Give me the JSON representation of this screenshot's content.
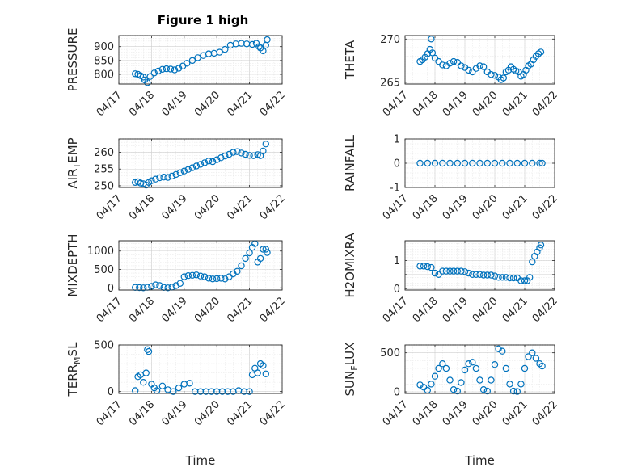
{
  "figure_title": "Figure 1 high",
  "colors": {
    "series": "#0072BD",
    "axes": "#262626"
  },
  "chart_data": [
    {
      "type": "scatter",
      "panel": "PRESSURE",
      "title": "Figure 1 high",
      "xlabel": "",
      "ylabel": "PRESSURE",
      "xlim": [
        "04/17",
        "04/22"
      ],
      "xticks": [
        "04/17",
        "04/18",
        "04/19",
        "04/20",
        "04/21",
        "04/22"
      ],
      "ylim": [
        765,
        940
      ],
      "yticks": [
        800,
        850,
        900
      ],
      "yticklabels": [
        "800",
        "850",
        "900"
      ],
      "grid": true,
      "marker": "circle",
      "x": [
        "04/17 12:00",
        "04/17 14:00",
        "04/17 16:00",
        "04/17 18:00",
        "04/17 19:00",
        "04/17 21:00",
        "04/17 23:00",
        "04/18 02:00",
        "04/18 05:00",
        "04/18 08:00",
        "04/18 11:00",
        "04/18 14:00",
        "04/18 17:00",
        "04/18 20:00",
        "04/18 23:00",
        "04/19 02:00",
        "04/19 06:00",
        "04/19 10:00",
        "04/19 14:00",
        "04/19 18:00",
        "04/19 22:00",
        "04/20 02:00",
        "04/20 06:00",
        "04/20 10:00",
        "04/20 14:00",
        "04/20 18:00",
        "04/20 22:00",
        "04/21 02:00",
        "04/21 05:00",
        "04/21 07:00",
        "04/21 08:00",
        "04/21 10:00",
        "04/21 12:00",
        "04/21 13:00"
      ],
      "y": [
        802,
        800,
        795,
        790,
        780,
        770,
        792,
        805,
        812,
        818,
        820,
        819,
        816,
        822,
        830,
        840,
        850,
        860,
        868,
        874,
        876,
        880,
        890,
        905,
        910,
        912,
        910,
        908,
        912,
        900,
        895,
        885,
        905,
        925
      ]
    },
    {
      "type": "scatter",
      "panel": "THETA",
      "xlabel": "",
      "ylabel": "THETA",
      "xlim": [
        "04/17",
        "04/22"
      ],
      "xticks": [
        "04/17",
        "04/18",
        "04/19",
        "04/20",
        "04/21",
        "04/22"
      ],
      "ylim": [
        264.8,
        270.4
      ],
      "yticks": [
        265,
        270
      ],
      "yticklabels": [
        "265",
        "270"
      ],
      "grid": true,
      "marker": "circle",
      "x": [
        "04/17 12:00",
        "04/17 14:00",
        "04/17 16:00",
        "04/17 18:00",
        "04/17 20:00",
        "04/17 21:00",
        "04/17 22:00",
        "04/18 00:00",
        "04/18 03:00",
        "04/18 06:00",
        "04/18 09:00",
        "04/18 12:00",
        "04/18 15:00",
        "04/18 18:00",
        "04/18 21:00",
        "04/19 00:00",
        "04/19 03:00",
        "04/19 06:00",
        "04/19 09:00",
        "04/19 12:00",
        "04/19 15:00",
        "04/19 18:00",
        "04/19 21:00",
        "04/20 00:00",
        "04/20 03:00",
        "04/20 05:00",
        "04/20 07:00",
        "04/20 09:00",
        "04/20 11:00",
        "04/20 13:00",
        "04/20 15:00",
        "04/20 17:00",
        "04/20 19:00",
        "04/20 21:00",
        "04/20 23:00",
        "04/21 01:00",
        "04/21 03:00",
        "04/21 05:00",
        "04/21 07:00",
        "04/21 09:00",
        "04/21 11:00",
        "04/21 13:00"
      ],
      "y": [
        267.4,
        267.6,
        267.9,
        268.3,
        268.8,
        270.0,
        268.4,
        267.8,
        267.4,
        267.0,
        266.9,
        267.2,
        267.4,
        267.3,
        266.9,
        266.7,
        266.4,
        266.2,
        266.6,
        266.9,
        266.8,
        266.2,
        265.9,
        265.8,
        265.6,
        265.3,
        265.5,
        266.2,
        266.4,
        266.8,
        266.5,
        266.3,
        266.2,
        265.7,
        265.9,
        266.4,
        266.9,
        267.1,
        267.6,
        268.0,
        268.3,
        268.5
      ]
    },
    {
      "type": "scatter",
      "panel": "AIR_TEMP",
      "xlabel": "",
      "ylabel": "AIR_TEMP",
      "ylabel_main": "AIR",
      "ylabel_sub": "T",
      "ylabel_tail": "EMP",
      "xlim": [
        "04/17",
        "04/22"
      ],
      "xticks": [
        "04/17",
        "04/18",
        "04/19",
        "04/20",
        "04/21",
        "04/22"
      ],
      "ylim": [
        249.5,
        264.0
      ],
      "yticks": [
        250,
        255,
        260
      ],
      "yticklabels": [
        "250",
        "255",
        "260"
      ],
      "grid": true,
      "marker": "circle",
      "x": [
        "04/17 12:00",
        "04/17 14:00",
        "04/17 16:00",
        "04/17 18:00",
        "04/17 20:00",
        "04/17 22:00",
        "04/18 00:00",
        "04/18 03:00",
        "04/18 06:00",
        "04/18 09:00",
        "04/18 12:00",
        "04/18 15:00",
        "04/18 18:00",
        "04/18 21:00",
        "04/19 00:00",
        "04/19 03:00",
        "04/19 06:00",
        "04/19 09:00",
        "04/19 12:00",
        "04/19 15:00",
        "04/19 18:00",
        "04/19 21:00",
        "04/20 00:00",
        "04/20 03:00",
        "04/20 06:00",
        "04/20 09:00",
        "04/20 12:00",
        "04/20 15:00",
        "04/20 18:00",
        "04/20 21:00",
        "04/21 00:00",
        "04/21 03:00",
        "04/21 06:00",
        "04/21 08:00",
        "04/21 10:00",
        "04/21 12:00"
      ],
      "y": [
        251.0,
        251.2,
        250.8,
        250.6,
        250.2,
        251.0,
        251.5,
        252.0,
        252.4,
        252.6,
        252.5,
        252.9,
        253.4,
        253.9,
        254.4,
        254.9,
        255.4,
        255.9,
        256.4,
        256.9,
        257.4,
        257.2,
        257.8,
        258.4,
        258.9,
        259.4,
        260.0,
        260.2,
        259.8,
        259.4,
        259.1,
        259.0,
        259.3,
        259.0,
        260.4,
        262.5
      ]
    },
    {
      "type": "scatter",
      "panel": "RAINFALL",
      "xlabel": "",
      "ylabel": "RAINFALL",
      "xlim": [
        "04/17",
        "04/22"
      ],
      "xticks": [
        "04/17",
        "04/18",
        "04/19",
        "04/20",
        "04/21",
        "04/22"
      ],
      "ylim": [
        -1,
        1
      ],
      "yticks": [
        -1,
        0,
        1
      ],
      "yticklabels": [
        "-1",
        "0",
        "1"
      ],
      "grid": true,
      "marker": "circle",
      "x": [
        "04/17 12:00",
        "04/17 18:00",
        "04/18 00:00",
        "04/18 06:00",
        "04/18 12:00",
        "04/18 18:00",
        "04/19 00:00",
        "04/19 06:00",
        "04/19 12:00",
        "04/19 18:00",
        "04/20 00:00",
        "04/20 06:00",
        "04/20 12:00",
        "04/20 18:00",
        "04/21 00:00",
        "04/21 06:00",
        "04/21 12:00",
        "04/21 14:00"
      ],
      "y": [
        0,
        0,
        0,
        0,
        0,
        0,
        0,
        0,
        0,
        0,
        0,
        0,
        0,
        0,
        0,
        0,
        0,
        0
      ]
    },
    {
      "type": "scatter",
      "panel": "MIXDEPTH",
      "xlabel": "",
      "ylabel": "MIXDEPTH",
      "xlim": [
        "04/17",
        "04/22"
      ],
      "xticks": [
        "04/17",
        "04/18",
        "04/19",
        "04/20",
        "04/21",
        "04/22"
      ],
      "ylim": [
        -60,
        1280
      ],
      "yticks": [
        0,
        500,
        1000
      ],
      "yticklabels": [
        "0",
        "500",
        "1000"
      ],
      "grid": true,
      "marker": "circle",
      "x": [
        "04/17 12:00",
        "04/17 15:00",
        "04/17 18:00",
        "04/17 21:00",
        "04/18 00:00",
        "04/18 03:00",
        "04/18 06:00",
        "04/18 09:00",
        "04/18 12:00",
        "04/18 15:00",
        "04/18 18:00",
        "04/18 21:00",
        "04/19 00:00",
        "04/19 03:00",
        "04/19 06:00",
        "04/19 09:00",
        "04/19 12:00",
        "04/19 15:00",
        "04/19 18:00",
        "04/19 21:00",
        "04/20 00:00",
        "04/20 03:00",
        "04/20 06:00",
        "04/20 09:00",
        "04/20 12:00",
        "04/20 15:00",
        "04/20 18:00",
        "04/20 21:00",
        "04/21 00:00",
        "04/21 02:00",
        "04/21 04:00",
        "04/21 06:00",
        "04/21 08:00",
        "04/21 10:00",
        "04/21 12:00",
        "04/21 13:00"
      ],
      "y": [
        10,
        5,
        0,
        15,
        40,
        80,
        60,
        10,
        0,
        20,
        60,
        120,
        300,
        330,
        340,
        350,
        320,
        300,
        260,
        240,
        250,
        260,
        240,
        300,
        380,
        450,
        600,
        800,
        950,
        1100,
        1200,
        700,
        800,
        1050,
        1050,
        960
      ]
    },
    {
      "type": "scatter",
      "panel": "H2OMIXRA",
      "xlabel": "",
      "ylabel": "H2OMIXRA",
      "xlim": [
        "04/17",
        "04/22"
      ],
      "xticks": [
        "04/17",
        "04/18",
        "04/19",
        "04/20",
        "04/21",
        "04/22"
      ],
      "ylim": [
        -0.05,
        1.7
      ],
      "yticks": [
        0,
        0.5,
        1
      ],
      "yticklabels": [
        "0",
        "",
        "1"
      ],
      "grid": true,
      "marker": "circle",
      "x": [
        "04/17 12:00",
        "04/17 15:00",
        "04/17 18:00",
        "04/17 21:00",
        "04/18 00:00",
        "04/18 03:00",
        "04/18 06:00",
        "04/18 09:00",
        "04/18 12:00",
        "04/18 15:00",
        "04/18 18:00",
        "04/18 21:00",
        "04/19 00:00",
        "04/19 03:00",
        "04/19 06:00",
        "04/19 09:00",
        "04/19 12:00",
        "04/19 15:00",
        "04/19 18:00",
        "04/19 21:00",
        "04/20 00:00",
        "04/20 03:00",
        "04/20 06:00",
        "04/20 09:00",
        "04/20 12:00",
        "04/20 15:00",
        "04/20 18:00",
        "04/20 21:00",
        "04/21 00:00",
        "04/21 02:00",
        "04/21 04:00",
        "04/21 06:00",
        "04/21 08:00",
        "04/21 10:00",
        "04/21 12:00",
        "04/21 13:00"
      ],
      "y": [
        0.8,
        0.8,
        0.78,
        0.75,
        0.55,
        0.5,
        0.62,
        0.62,
        0.62,
        0.62,
        0.62,
        0.62,
        0.6,
        0.55,
        0.5,
        0.5,
        0.5,
        0.48,
        0.48,
        0.48,
        0.45,
        0.4,
        0.4,
        0.4,
        0.38,
        0.38,
        0.38,
        0.28,
        0.28,
        0.28,
        0.4,
        0.95,
        1.15,
        1.3,
        1.45,
        1.55
      ]
    },
    {
      "type": "scatter",
      "panel": "TERR_MSL",
      "xlabel": "Time",
      "ylabel": "TERR_MSL",
      "ylabel_main": "TERR",
      "ylabel_sub": "M",
      "ylabel_tail": "SL",
      "xlim": [
        "04/17",
        "04/22"
      ],
      "xticks": [
        "04/17",
        "04/18",
        "04/19",
        "04/20",
        "04/21",
        "04/22"
      ],
      "ylim": [
        -20,
        500
      ],
      "yticks": [
        0,
        500
      ],
      "yticklabels": [
        "0",
        "500"
      ],
      "grid": true,
      "marker": "circle",
      "x": [
        "04/17 12:00",
        "04/17 14:00",
        "04/17 16:00",
        "04/17 18:00",
        "04/17 20:00",
        "04/17 21:00",
        "04/17 22:00",
        "04/18 00:00",
        "04/18 02:00",
        "04/18 04:00",
        "04/18 08:00",
        "04/18 12:00",
        "04/18 16:00",
        "04/18 20:00",
        "04/19 00:00",
        "04/19 04:00",
        "04/19 08:00",
        "04/19 12:00",
        "04/19 16:00",
        "04/19 20:00",
        "04/20 00:00",
        "04/20 04:00",
        "04/20 08:00",
        "04/20 12:00",
        "04/20 16:00",
        "04/20 20:00",
        "04/21 00:00",
        "04/21 02:00",
        "04/21 04:00",
        "04/21 06:00",
        "04/21 08:00",
        "04/21 10:00",
        "04/21 12:00"
      ],
      "y": [
        10,
        160,
        180,
        100,
        200,
        450,
        430,
        80,
        40,
        10,
        60,
        20,
        0,
        40,
        80,
        90,
        0,
        0,
        0,
        0,
        0,
        0,
        0,
        0,
        10,
        0,
        0,
        180,
        250,
        200,
        300,
        280,
        190
      ]
    },
    {
      "type": "scatter",
      "panel": "SUN_FLUX",
      "xlabel": "Time",
      "ylabel": "SUN_FLUX",
      "ylabel_main": "SUN",
      "ylabel_sub": "F",
      "ylabel_tail": "LUX",
      "xlim": [
        "04/17",
        "04/22"
      ],
      "xticks": [
        "04/17",
        "04/18",
        "04/19",
        "04/20",
        "04/21",
        "04/22"
      ],
      "ylim": [
        -20,
        600
      ],
      "yticks": [
        0,
        500
      ],
      "yticklabels": [
        "0",
        "500"
      ],
      "grid": true,
      "marker": "circle",
      "x": [
        "04/17 12:00",
        "04/17 15:00",
        "04/17 18:00",
        "04/17 21:00",
        "04/18 00:00",
        "04/18 03:00",
        "04/18 06:00",
        "04/18 09:00",
        "04/18 12:00",
        "04/18 15:00",
        "04/18 18:00",
        "04/18 21:00",
        "04/19 00:00",
        "04/19 03:00",
        "04/19 06:00",
        "04/19 09:00",
        "04/19 12:00",
        "04/19 15:00",
        "04/19 18:00",
        "04/19 21:00",
        "04/20 00:00",
        "04/20 03:00",
        "04/20 06:00",
        "04/20 09:00",
        "04/20 12:00",
        "04/20 15:00",
        "04/20 18:00",
        "04/20 21:00",
        "04/21 00:00",
        "04/21 03:00",
        "04/21 06:00",
        "04/21 09:00",
        "04/21 12:00",
        "04/21 14:00"
      ],
      "y": [
        90,
        60,
        20,
        100,
        200,
        300,
        360,
        300,
        150,
        30,
        10,
        120,
        280,
        360,
        380,
        300,
        150,
        30,
        10,
        150,
        350,
        550,
        520,
        300,
        100,
        10,
        5,
        100,
        300,
        450,
        500,
        430,
        360,
        330
      ]
    }
  ]
}
